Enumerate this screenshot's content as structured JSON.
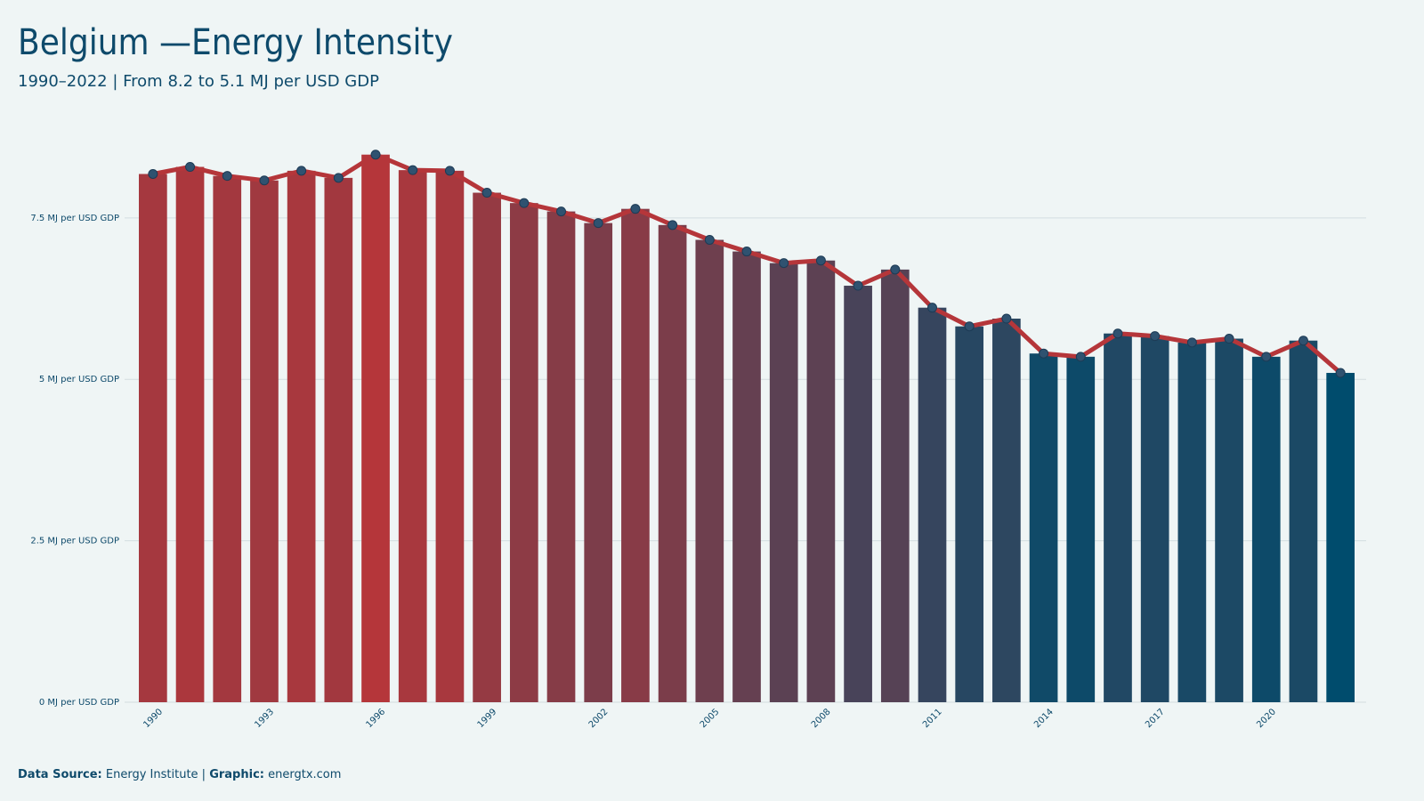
{
  "chart_data": {
    "type": "bar",
    "title": "Belgium —Energy Intensity",
    "subtitle": "1990–2022 | From 8.2 to 5.1 MJ per USD GDP",
    "categories": [
      "1990",
      null,
      null,
      "1993",
      null,
      null,
      "1996",
      null,
      null,
      "1999",
      null,
      null,
      "2002",
      null,
      null,
      "2005",
      null,
      null,
      "2008",
      null,
      null,
      "2011",
      null,
      null,
      "2014",
      null,
      null,
      "2017",
      null,
      null,
      "2020",
      null,
      null
    ],
    "values": [
      8.18,
      8.29,
      8.15,
      8.08,
      8.23,
      8.12,
      8.48,
      8.24,
      8.23,
      7.89,
      7.73,
      7.6,
      7.42,
      7.64,
      7.39,
      7.16,
      6.98,
      6.8,
      6.84,
      6.45,
      6.7,
      6.11,
      5.82,
      5.94,
      5.4,
      5.35,
      5.71,
      5.67,
      5.57,
      5.63,
      5.35,
      5.6,
      5.1
    ],
    "color_scale": [
      "#004c6d",
      "#b5363a"
    ],
    "line": true,
    "line_color": "#b5363a",
    "marker_color": "#2f5270",
    "ylim": [
      0,
      9
    ],
    "yticks": [
      {
        "value": 0,
        "label": "0 MJ per USD GDP"
      },
      {
        "value": 2.5,
        "label": "2.5 MJ per USD GDP"
      },
      {
        "value": 5,
        "label": "5 MJ per USD GDP"
      },
      {
        "value": 7.5,
        "label": "7.5 MJ per USD GDP"
      }
    ],
    "grid": true,
    "footer": {
      "source_label": "Data Source:",
      "source": "Energy Institute |",
      "graphic_label": "Graphic:",
      "graphic": "energtx.com"
    }
  }
}
